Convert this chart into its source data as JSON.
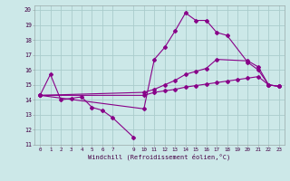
{
  "xlabel": "Windchill (Refroidissement éolien,°C)",
  "bg_color": "#cce8e8",
  "grid_color": "#aacccc",
  "line_color": "#880088",
  "xlim": [
    -0.5,
    23.5
  ],
  "ylim": [
    11,
    20.3
  ],
  "xtick_vals": [
    0,
    1,
    2,
    3,
    4,
    5,
    6,
    7,
    9,
    10,
    11,
    12,
    13,
    14,
    15,
    16,
    17,
    18,
    19,
    20,
    21,
    22,
    23
  ],
  "xtick_labels": [
    "0",
    "1",
    "2",
    "3",
    "4",
    "5",
    "6",
    "7",
    "9",
    "10",
    "11",
    "12",
    "13",
    "14",
    "15",
    "16",
    "17",
    "18",
    "19",
    "20",
    "21",
    "22",
    "23"
  ],
  "ytick_vals": [
    11,
    12,
    13,
    14,
    15,
    16,
    17,
    18,
    19,
    20
  ],
  "ytick_labels": [
    "11",
    "12",
    "13",
    "14",
    "15",
    "16",
    "17",
    "18",
    "19",
    "20"
  ],
  "line1_x": [
    0,
    1,
    2,
    3,
    4,
    5,
    6,
    7,
    9
  ],
  "line1_y": [
    14.3,
    15.7,
    14.0,
    14.1,
    14.2,
    13.5,
    13.3,
    12.8,
    11.5
  ],
  "line2_x": [
    0,
    10,
    11,
    12,
    13,
    14,
    15,
    16,
    17,
    18,
    20,
    21,
    22,
    23
  ],
  "line2_y": [
    14.3,
    13.4,
    16.7,
    17.5,
    18.6,
    19.8,
    19.3,
    19.3,
    18.5,
    18.3,
    16.5,
    16.0,
    15.0,
    14.9
  ],
  "line3_x": [
    0,
    10,
    11,
    12,
    13,
    14,
    15,
    16,
    17,
    20,
    21,
    22,
    23
  ],
  "line3_y": [
    14.3,
    14.5,
    14.7,
    15.0,
    15.3,
    15.7,
    15.9,
    16.1,
    16.7,
    16.6,
    16.2,
    15.0,
    14.9
  ],
  "line4_x": [
    0,
    10,
    11,
    12,
    13,
    14,
    15,
    16,
    17,
    18,
    19,
    20,
    21,
    22,
    23
  ],
  "line4_y": [
    14.3,
    14.3,
    14.5,
    14.6,
    14.7,
    14.85,
    14.95,
    15.05,
    15.15,
    15.25,
    15.35,
    15.45,
    15.55,
    15.0,
    14.9
  ]
}
